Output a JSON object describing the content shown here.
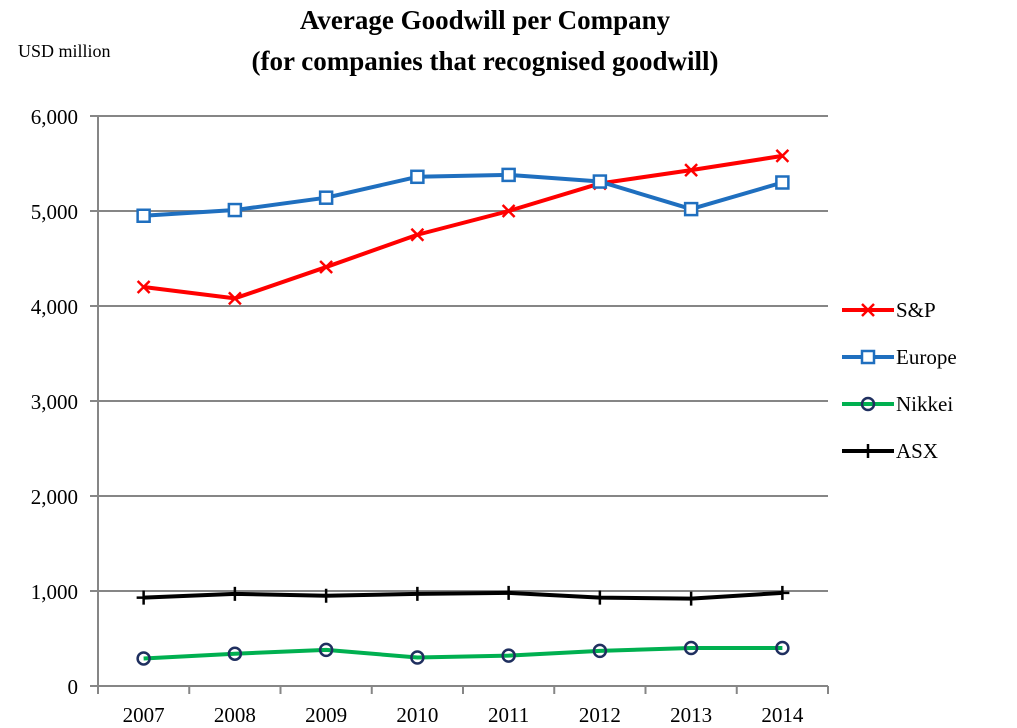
{
  "chart_data": {
    "type": "line",
    "title_lines": [
      "Average Goodwill per Company",
      "(for companies that recognised goodwill)"
    ],
    "ylabel": "USD million",
    "xlabel": "",
    "x": [
      "2007",
      "2008",
      "2009",
      "2010",
      "2011",
      "2012",
      "2013",
      "2014"
    ],
    "ylim": [
      0,
      6000
    ],
    "yticks": [
      0,
      1000,
      2000,
      3000,
      4000,
      5000,
      6000
    ],
    "ytick_labels": [
      "0",
      "1,000",
      "2,000",
      "3,000",
      "4,000",
      "5,000",
      "6,000"
    ],
    "grid": "horizontal",
    "legend_position": "right",
    "series": [
      {
        "name": "S&P",
        "color": "#ff0000",
        "marker": "x",
        "values": [
          4200,
          4080,
          4410,
          4750,
          5000,
          5290,
          5430,
          5580
        ]
      },
      {
        "name": "Europe",
        "color": "#1f6fbf",
        "marker": "square",
        "values": [
          4950,
          5010,
          5140,
          5360,
          5380,
          5310,
          5020,
          5300
        ]
      },
      {
        "name": "Nikkei",
        "color": "#00b050",
        "marker": "circle",
        "marker_edge": "#1f2f5f",
        "values": [
          290,
          340,
          380,
          300,
          320,
          370,
          400,
          400
        ]
      },
      {
        "name": "ASX",
        "color": "#000000",
        "marker": "plus",
        "values": [
          930,
          970,
          950,
          970,
          980,
          930,
          920,
          980
        ]
      }
    ]
  }
}
